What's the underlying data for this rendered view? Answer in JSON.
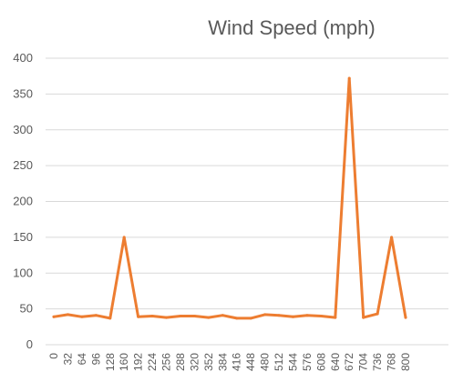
{
  "chart_data": {
    "type": "line",
    "title": "Wind Speed (mph)",
    "xlabel": "",
    "ylabel": "",
    "ylim": [
      0,
      400
    ],
    "yticks": [
      0,
      50,
      100,
      150,
      200,
      250,
      300,
      350,
      400
    ],
    "grid": true,
    "legend": "none",
    "color": "#ED7D31",
    "categories": [
      "0",
      "32",
      "64",
      "96",
      "128",
      "160",
      "192",
      "224",
      "256",
      "288",
      "320",
      "352",
      "384",
      "416",
      "448",
      "480",
      "512",
      "544",
      "576",
      "608",
      "640",
      "672",
      "704",
      "736",
      "768",
      "800"
    ],
    "series": [
      {
        "values": [
          39,
          42,
          39,
          41,
          37,
          150,
          39,
          40,
          38,
          40,
          40,
          38,
          41,
          37,
          37,
          42,
          41,
          39,
          41,
          40,
          38,
          372,
          38,
          43,
          150,
          38
        ]
      }
    ]
  }
}
